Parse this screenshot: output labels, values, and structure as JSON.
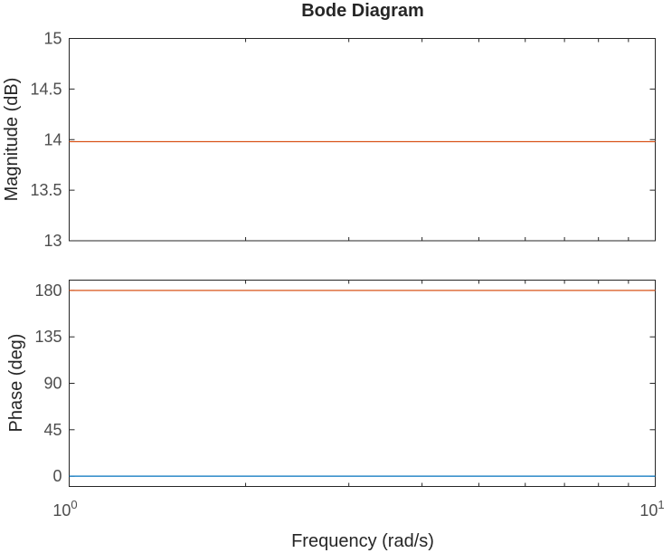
{
  "chart_data": {
    "type": "line",
    "title": "Bode Diagram",
    "xlabel": "Frequency (rad/s)",
    "x_scale": "log",
    "xlim": [
      1,
      10
    ],
    "x_ticks": [
      {
        "base": "10",
        "exp": "0"
      },
      {
        "base": "10",
        "exp": "1"
      }
    ],
    "grid": false,
    "subplots": [
      {
        "name": "magnitude",
        "ylabel": "Magnitude (dB)",
        "ylim": [
          13,
          15
        ],
        "yticks": [
          "13",
          "13.5",
          "14",
          "14.5",
          "15"
        ],
        "series": [
          {
            "color": "#d95319",
            "x": [
              1,
              10
            ],
            "values": [
              13.98,
              13.98
            ]
          }
        ]
      },
      {
        "name": "phase",
        "ylabel": "Phase (deg)",
        "ylim": [
          -10,
          190
        ],
        "yticks": [
          "0",
          "45",
          "90",
          "135",
          "180"
        ],
        "series": [
          {
            "color": "#d95319",
            "x": [
              1,
              10
            ],
            "values": [
              180,
              180
            ]
          },
          {
            "color": "#0072bd",
            "x": [
              1,
              10
            ],
            "values": [
              0,
              0
            ]
          }
        ]
      }
    ]
  }
}
